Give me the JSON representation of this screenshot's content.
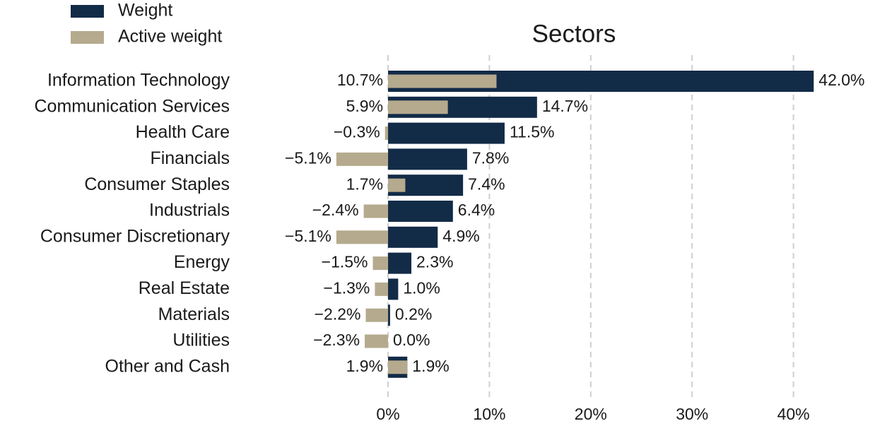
{
  "chart_data": {
    "type": "hbar",
    "title": "Sectors",
    "legend": "upper left",
    "grid": true,
    "categories": [
      "Information Technology",
      "Communication Services",
      "Health Care",
      "Financials",
      "Consumer Staples",
      "Industrials",
      "Consumer Discretionary",
      "Energy",
      "Real Estate",
      "Materials",
      "Utilities",
      "Other and Cash"
    ],
    "series": [
      {
        "name": "Weight",
        "color": "#122b47",
        "values": [
          42.0,
          14.7,
          11.5,
          7.8,
          7.4,
          6.4,
          4.9,
          2.3,
          1.0,
          0.2,
          0.0,
          1.9
        ],
        "value_labels": [
          "42.0%",
          "14.7%",
          "11.5%",
          "7.8%",
          "7.4%",
          "6.4%",
          "4.9%",
          "2.3%",
          "1.0%",
          "0.2%",
          "0.0%",
          "1.9%"
        ]
      },
      {
        "name": "Active weight",
        "color": "#b5aa8e",
        "values": [
          10.7,
          5.9,
          -0.3,
          -5.1,
          1.7,
          -2.4,
          -5.1,
          -1.5,
          -1.3,
          -2.2,
          -2.3,
          1.9
        ],
        "value_labels": [
          "10.7%",
          "5.9%",
          "−0.3%",
          "−5.1%",
          "1.7%",
          "−2.4%",
          "−5.1%",
          "−1.5%",
          "−1.3%",
          "−2.2%",
          "−2.3%",
          "1.9%"
        ]
      }
    ],
    "xlim": [
      -6,
      47
    ],
    "xticks": [
      {
        "value": 0,
        "label": "0%"
      },
      {
        "value": 10,
        "label": "10%"
      },
      {
        "value": 20,
        "label": "20%"
      },
      {
        "value": 30,
        "label": "30%"
      },
      {
        "value": 40,
        "label": "40%"
      }
    ]
  }
}
